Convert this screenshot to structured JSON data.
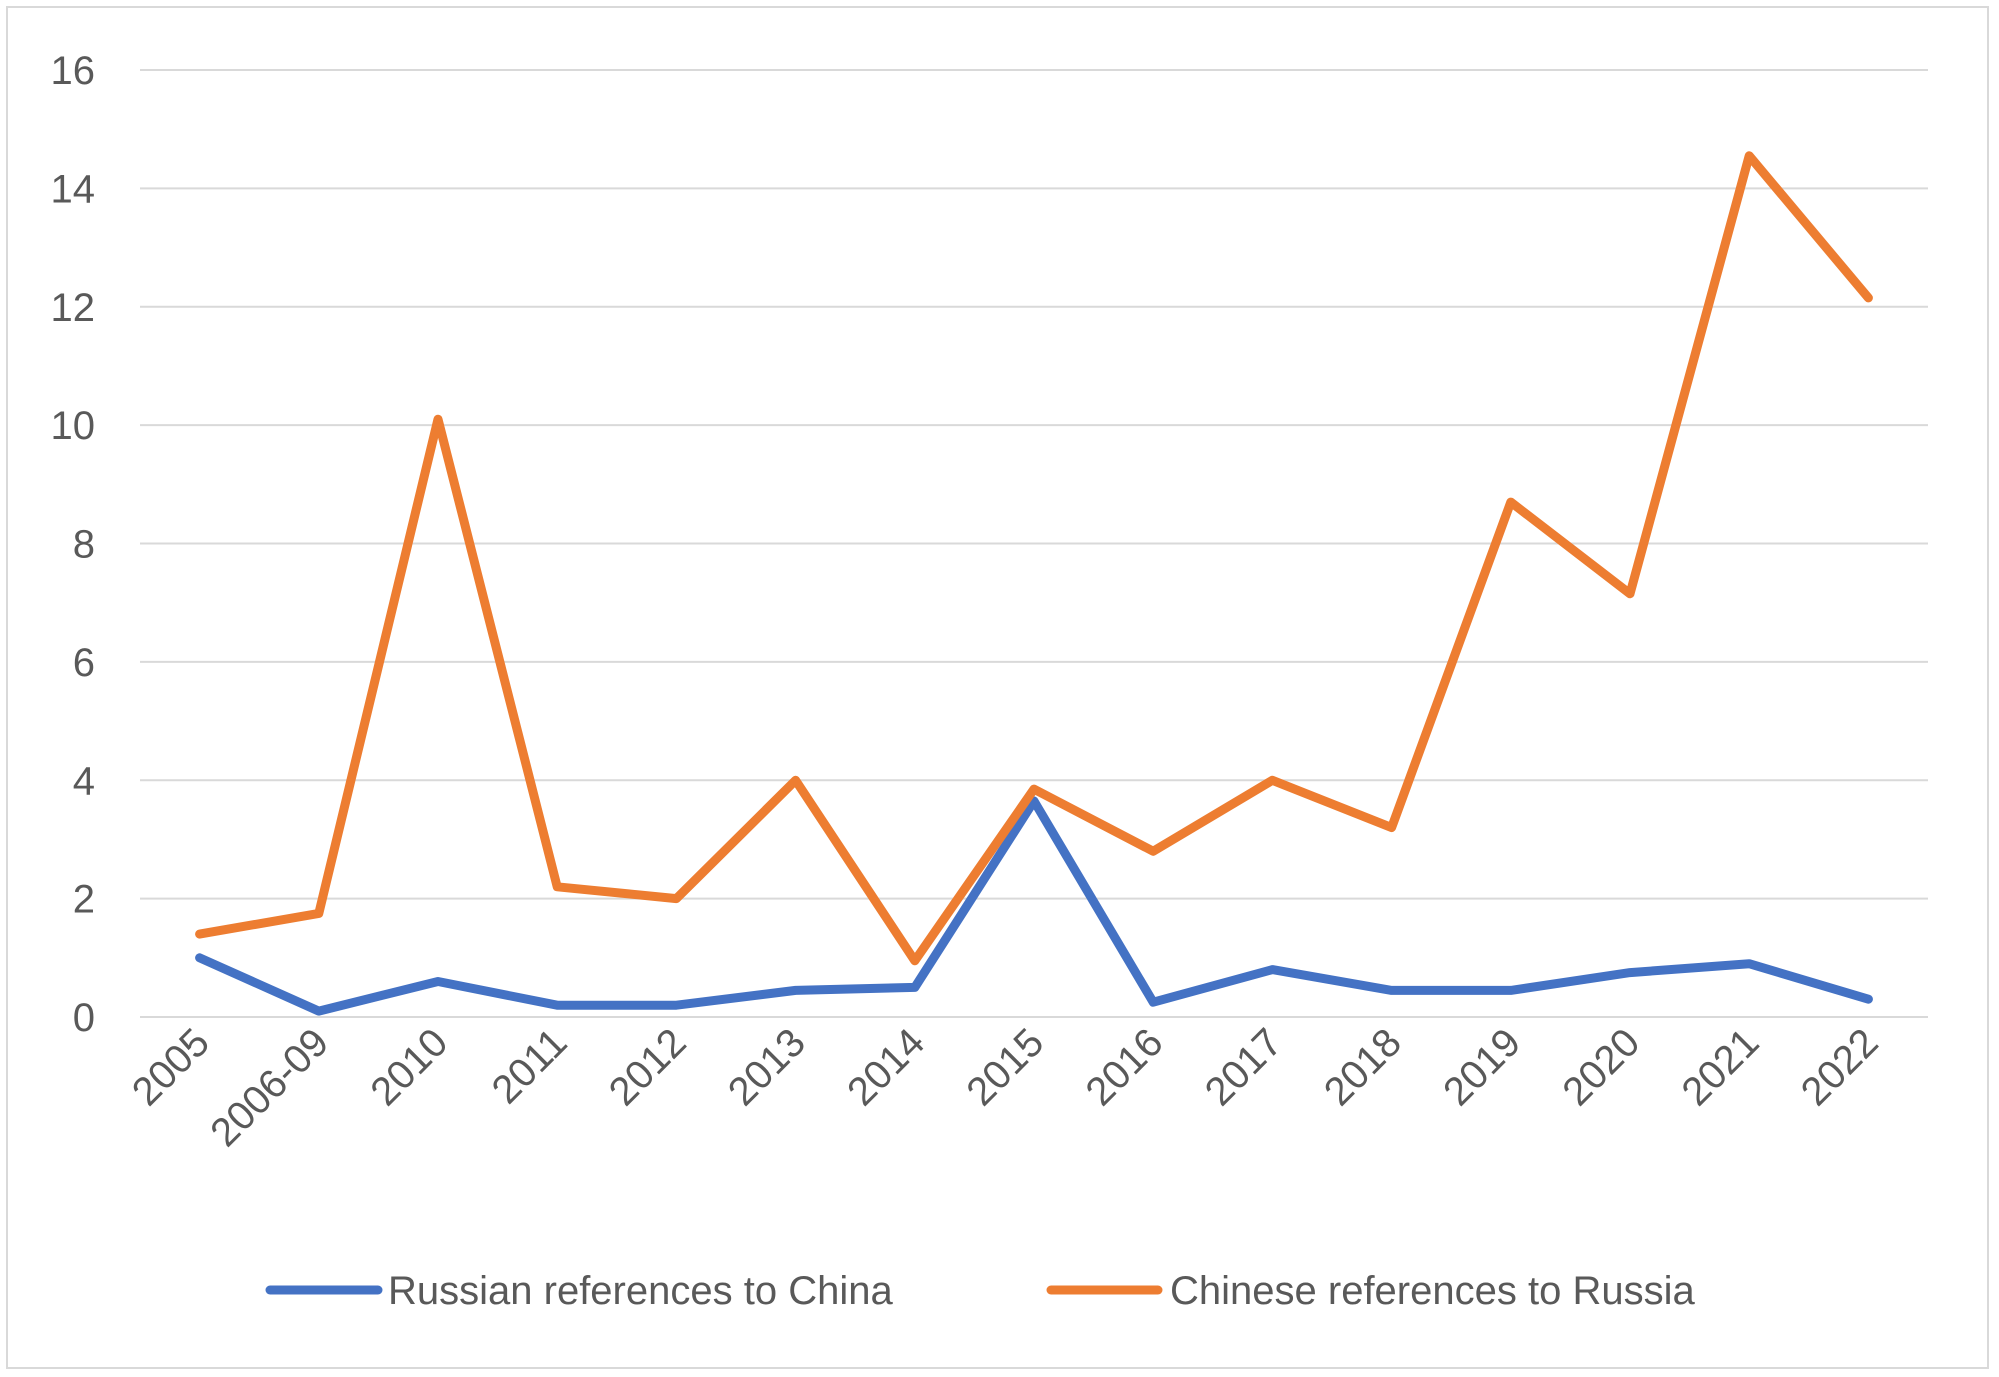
{
  "chart_data": {
    "type": "line",
    "title": "",
    "xlabel": "",
    "ylabel": "",
    "categories": [
      "2005",
      "2006-09",
      "2010",
      "2011",
      "2012",
      "2013",
      "2014",
      "2015",
      "2016",
      "2017",
      "2018",
      "2019",
      "2020",
      "2021",
      "2022"
    ],
    "ylim": [
      0,
      16
    ],
    "yticks": [
      "0",
      "2",
      "4",
      "6",
      "8",
      "10",
      "12",
      "14",
      "16"
    ],
    "grid": "horizontal",
    "legend_position": "bottom",
    "series": [
      {
        "name": "Russian references to China",
        "color": "#4472c4",
        "values": [
          1.0,
          0.1,
          0.6,
          0.2,
          0.2,
          0.45,
          0.5,
          3.65,
          0.25,
          0.8,
          0.45,
          0.45,
          0.75,
          0.9,
          0.3
        ]
      },
      {
        "name": "Chinese references to Russia",
        "color": "#ed7d31",
        "values": [
          1.4,
          1.75,
          10.1,
          2.2,
          2.0,
          4.0,
          0.95,
          3.85,
          2.8,
          4.0,
          3.2,
          8.7,
          7.15,
          14.55,
          12.15
        ]
      }
    ]
  }
}
